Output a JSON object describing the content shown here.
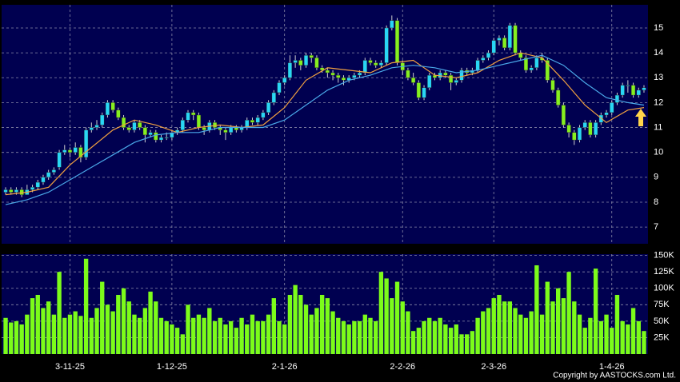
{
  "chart_data": [
    {
      "type": "candlestick",
      "up_color": "#29d6f5",
      "down_color": "#86f020",
      "grid": true,
      "xlim": [
        -0.75,
        119.75
      ],
      "ylim": [
        6.33,
        15.93
      ],
      "yticks": [
        7,
        8,
        9,
        10,
        11,
        12,
        13,
        14,
        15
      ],
      "ohlc": [
        [
          8.4,
          8.6,
          8.3,
          8.5
        ],
        [
          8.5,
          8.6,
          8.3,
          8.4
        ],
        [
          8.4,
          8.6,
          8.3,
          8.5
        ],
        [
          8.5,
          8.6,
          8.2,
          8.3
        ],
        [
          8.3,
          8.7,
          8.3,
          8.5
        ],
        [
          8.5,
          8.7,
          8.4,
          8.6
        ],
        [
          8.6,
          8.9,
          8.5,
          8.8
        ],
        [
          8.8,
          9.1,
          8.7,
          9.0
        ],
        [
          9.0,
          9.3,
          8.9,
          9.2
        ],
        [
          9.2,
          9.4,
          9.1,
          9.3
        ],
        [
          9.4,
          10.1,
          9.3,
          10.0
        ],
        [
          10.0,
          10.3,
          9.9,
          10.1
        ],
        [
          10.1,
          10.2,
          9.8,
          10.0
        ],
        [
          10.0,
          10.4,
          9.9,
          10.2
        ],
        [
          10.2,
          10.3,
          9.6,
          9.8
        ],
        [
          9.8,
          11.0,
          9.7,
          10.9
        ],
        [
          10.9,
          11.2,
          10.8,
          11.0
        ],
        [
          11.0,
          11.3,
          10.9,
          11.1
        ],
        [
          11.1,
          11.6,
          11.0,
          11.5
        ],
        [
          11.5,
          12.1,
          11.4,
          12.0
        ],
        [
          12.0,
          12.1,
          11.6,
          11.7
        ],
        [
          11.7,
          11.8,
          11.3,
          11.4
        ],
        [
          11.4,
          11.5,
          10.9,
          11.0
        ],
        [
          11.0,
          11.1,
          10.8,
          10.9
        ],
        [
          10.9,
          11.3,
          10.8,
          11.2
        ],
        [
          11.2,
          11.3,
          10.9,
          11.0
        ],
        [
          11.0,
          11.1,
          10.4,
          10.7
        ],
        [
          10.7,
          10.9,
          10.6,
          10.8
        ],
        [
          10.8,
          10.9,
          10.4,
          10.5
        ],
        [
          10.5,
          10.7,
          10.4,
          10.6
        ],
        [
          10.6,
          10.8,
          10.5,
          10.6
        ],
        [
          10.6,
          10.9,
          10.5,
          10.8
        ],
        [
          10.8,
          11.0,
          10.7,
          10.9
        ],
        [
          10.9,
          11.4,
          10.8,
          11.3
        ],
        [
          11.3,
          11.7,
          11.2,
          11.6
        ],
        [
          11.6,
          11.7,
          11.3,
          11.5
        ],
        [
          11.5,
          11.6,
          10.9,
          11.0
        ],
        [
          11.0,
          11.1,
          10.7,
          10.9
        ],
        [
          10.9,
          11.3,
          10.8,
          11.2
        ],
        [
          11.2,
          11.3,
          10.9,
          11.0
        ],
        [
          11.0,
          11.1,
          10.7,
          10.9
        ],
        [
          10.9,
          11.0,
          10.5,
          10.8
        ],
        [
          10.8,
          11.1,
          10.7,
          11.0
        ],
        [
          11.0,
          11.1,
          10.8,
          10.9
        ],
        [
          10.9,
          11.1,
          10.8,
          11.0
        ],
        [
          11.0,
          11.4,
          10.9,
          11.3
        ],
        [
          11.3,
          11.4,
          11.1,
          11.2
        ],
        [
          11.2,
          11.5,
          11.1,
          11.4
        ],
        [
          11.4,
          11.7,
          11.3,
          11.6
        ],
        [
          11.6,
          12.1,
          11.5,
          12.0
        ],
        [
          12.0,
          12.5,
          11.9,
          12.4
        ],
        [
          12.4,
          12.9,
          12.3,
          12.8
        ],
        [
          12.8,
          13.1,
          12.7,
          13.0
        ],
        [
          13.0,
          13.9,
          12.9,
          13.6
        ],
        [
          13.6,
          13.9,
          13.4,
          13.7
        ],
        [
          13.7,
          13.8,
          13.3,
          13.5
        ],
        [
          13.5,
          14.0,
          13.4,
          13.9
        ],
        [
          13.9,
          14.0,
          13.6,
          13.8
        ],
        [
          13.8,
          13.9,
          13.3,
          13.4
        ],
        [
          13.4,
          13.5,
          13.2,
          13.3
        ],
        [
          13.3,
          13.4,
          13.0,
          13.2
        ],
        [
          13.2,
          13.3,
          12.9,
          13.1
        ],
        [
          13.1,
          13.2,
          12.8,
          13.0
        ],
        [
          13.0,
          13.1,
          12.7,
          12.9
        ],
        [
          12.9,
          13.1,
          12.8,
          13.0
        ],
        [
          13.0,
          13.2,
          12.9,
          13.1
        ],
        [
          13.1,
          13.3,
          13.0,
          13.2
        ],
        [
          13.2,
          13.8,
          13.1,
          13.7
        ],
        [
          13.7,
          13.8,
          13.5,
          13.6
        ],
        [
          13.6,
          13.7,
          13.4,
          13.5
        ],
        [
          13.5,
          13.7,
          13.4,
          13.6
        ],
        [
          13.6,
          15.1,
          13.5,
          15.0
        ],
        [
          15.0,
          15.5,
          14.9,
          15.3
        ],
        [
          15.3,
          15.4,
          13.5,
          13.6
        ],
        [
          13.6,
          13.7,
          13.1,
          13.3
        ],
        [
          13.3,
          13.4,
          12.9,
          13.0
        ],
        [
          13.0,
          13.2,
          12.7,
          12.8
        ],
        [
          12.8,
          12.9,
          12.1,
          12.2
        ],
        [
          12.2,
          12.7,
          12.1,
          12.6
        ],
        [
          12.6,
          13.2,
          12.5,
          13.1
        ],
        [
          13.1,
          13.2,
          12.9,
          13.0
        ],
        [
          13.0,
          13.3,
          12.9,
          13.2
        ],
        [
          13.2,
          13.3,
          13.0,
          13.1
        ],
        [
          13.1,
          13.2,
          12.5,
          12.8
        ],
        [
          12.8,
          13.0,
          12.7,
          12.9
        ],
        [
          12.9,
          13.4,
          12.8,
          13.3
        ],
        [
          13.3,
          13.4,
          13.1,
          13.2
        ],
        [
          13.2,
          13.4,
          13.1,
          13.3
        ],
        [
          13.3,
          13.8,
          13.2,
          13.7
        ],
        [
          13.7,
          13.9,
          13.6,
          13.8
        ],
        [
          13.8,
          14.1,
          13.7,
          14.0
        ],
        [
          14.0,
          14.6,
          13.9,
          14.5
        ],
        [
          14.5,
          14.7,
          14.3,
          14.6
        ],
        [
          14.6,
          14.7,
          14.1,
          14.2
        ],
        [
          14.2,
          15.2,
          14.1,
          15.1
        ],
        [
          15.1,
          15.2,
          13.9,
          14.0
        ],
        [
          14.0,
          14.1,
          13.7,
          13.8
        ],
        [
          13.8,
          13.9,
          13.2,
          13.3
        ],
        [
          13.3,
          13.5,
          13.2,
          13.4
        ],
        [
          13.4,
          13.9,
          13.3,
          13.8
        ],
        [
          13.8,
          14.0,
          13.6,
          13.7
        ],
        [
          13.7,
          13.8,
          12.8,
          12.9
        ],
        [
          12.9,
          13.0,
          12.4,
          12.5
        ],
        [
          12.5,
          12.6,
          11.8,
          11.9
        ],
        [
          11.9,
          12.0,
          11.0,
          11.1
        ],
        [
          11.1,
          11.2,
          10.6,
          10.8
        ],
        [
          10.8,
          10.9,
          10.3,
          10.5
        ],
        [
          10.5,
          11.1,
          10.4,
          11.0
        ],
        [
          11.0,
          11.3,
          10.9,
          11.2
        ],
        [
          11.2,
          11.3,
          10.6,
          10.7
        ],
        [
          10.7,
          11.3,
          10.6,
          11.2
        ],
        [
          11.2,
          11.6,
          11.1,
          11.5
        ],
        [
          11.5,
          11.7,
          11.4,
          11.6
        ],
        [
          11.6,
          12.1,
          11.5,
          12.0
        ],
        [
          12.0,
          12.4,
          11.9,
          12.3
        ],
        [
          12.3,
          12.8,
          12.2,
          12.7
        ],
        [
          12.7,
          12.9,
          12.4,
          12.7
        ],
        [
          12.7,
          12.8,
          12.2,
          12.3
        ],
        [
          12.3,
          12.6,
          12.2,
          12.5
        ],
        [
          12.5,
          12.7,
          12.4,
          12.6
        ]
      ],
      "series": [
        {
          "color": "#f0a040",
          "x": [
            0,
            4,
            8,
            12,
            16,
            20,
            24,
            28,
            32,
            36,
            40,
            44,
            48,
            52,
            56,
            60,
            64,
            68,
            72,
            76,
            80,
            84,
            88,
            92,
            96,
            100,
            104,
            108,
            112,
            116,
            119
          ],
          "values": [
            8.3,
            8.4,
            8.6,
            9.5,
            10.2,
            10.9,
            11.3,
            11.1,
            10.8,
            11.0,
            11.1,
            11.0,
            11.1,
            11.8,
            12.9,
            13.4,
            13.3,
            13.2,
            13.6,
            13.7,
            13.1,
            13.0,
            13.2,
            13.7,
            14.0,
            13.8,
            12.9,
            11.9,
            11.2,
            11.7,
            11.8
          ]
        },
        {
          "color": "#4aa8e8",
          "x": [
            0,
            4,
            8,
            12,
            16,
            20,
            24,
            28,
            32,
            36,
            40,
            44,
            48,
            52,
            56,
            60,
            64,
            68,
            72,
            76,
            80,
            84,
            88,
            92,
            96,
            100,
            104,
            108,
            112,
            116,
            119
          ],
          "values": [
            7.9,
            8.1,
            8.4,
            8.9,
            9.4,
            9.9,
            10.4,
            10.7,
            10.8,
            10.8,
            11.0,
            11.0,
            11.0,
            11.3,
            11.9,
            12.5,
            12.9,
            13.1,
            13.4,
            13.5,
            13.4,
            13.2,
            13.3,
            13.5,
            13.7,
            13.9,
            13.5,
            12.8,
            12.2,
            12.0,
            11.9
          ]
        }
      ]
    },
    {
      "type": "bar",
      "color": "#7cfc1a",
      "grid": true,
      "xlim": [
        -0.75,
        119.75
      ],
      "ylim": [
        0,
        152000
      ],
      "yticks": [
        {
          "value": 25000,
          "label": "25K"
        },
        {
          "value": 50000,
          "label": "50K"
        },
        {
          "value": 75000,
          "label": "75K"
        },
        {
          "value": 100000,
          "label": "100K"
        },
        {
          "value": 125000,
          "label": "125K"
        },
        {
          "value": 150000,
          "label": "150K"
        }
      ],
      "xticks": [
        {
          "value": 12,
          "label": "3-11-25"
        },
        {
          "value": 31,
          "label": "1-12-25"
        },
        {
          "value": 52,
          "label": "2-1-26"
        },
        {
          "value": 74,
          "label": "2-2-26"
        },
        {
          "value": 91,
          "label": "2-3-26"
        },
        {
          "value": 113,
          "label": "1-4-26"
        }
      ],
      "values": [
        55000,
        48000,
        50000,
        45000,
        60000,
        85000,
        90000,
        70000,
        80000,
        60000,
        125000,
        55000,
        60000,
        65000,
        58000,
        145000,
        55000,
        70000,
        110000,
        75000,
        65000,
        90000,
        100000,
        80000,
        60000,
        55000,
        70000,
        95000,
        80000,
        55000,
        50000,
        45000,
        40000,
        30000,
        75000,
        55000,
        60000,
        55000,
        70000,
        50000,
        55000,
        45000,
        50000,
        40000,
        55000,
        45000,
        60000,
        50000,
        50000,
        60000,
        85000,
        50000,
        45000,
        90000,
        105000,
        90000,
        75000,
        60000,
        70000,
        90000,
        85000,
        65000,
        55000,
        50000,
        45000,
        50000,
        50000,
        60000,
        55000,
        50000,
        125000,
        115000,
        85000,
        110000,
        80000,
        65000,
        35000,
        40000,
        50000,
        55000,
        50000,
        55000,
        45000,
        40000,
        45000,
        30000,
        30000,
        35000,
        55000,
        65000,
        70000,
        85000,
        90000,
        80000,
        80000,
        70000,
        60000,
        55000,
        65000,
        135000,
        60000,
        110000,
        80000,
        100000,
        85000,
        125000,
        80000,
        60000,
        40000,
        55000,
        130000,
        50000,
        60000,
        40000,
        90000,
        50000,
        45000,
        70000,
        50000,
        35000
      ]
    }
  ],
  "footer": {
    "copyright": "Copyright by AASTOCKS.com Ltd."
  }
}
